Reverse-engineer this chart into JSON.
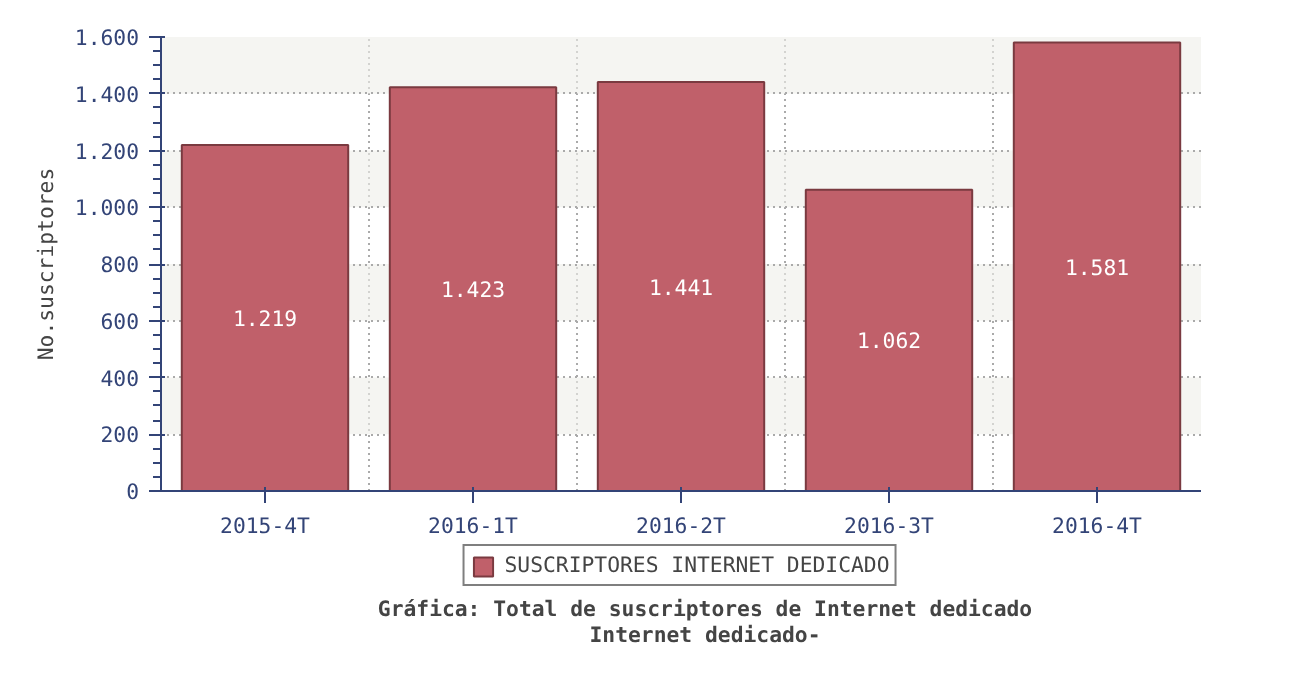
{
  "chart_data": {
    "type": "bar",
    "title": "Gráfica: Total de suscriptores de Internet dedicado\nInternet dedicado-",
    "ylabel": "No.suscriptores",
    "categories": [
      "2015-4T",
      "2016-1T",
      "2016-2T",
      "2016-3T",
      "2016-4T"
    ],
    "series": [
      {
        "name": "SUSCRIPTORES INTERNET DEDICADO",
        "color": "#c0606a",
        "values": [
          1219,
          1423,
          1441,
          1062,
          1581
        ]
      }
    ],
    "ylim": [
      0,
      1600
    ],
    "yticks": [
      0,
      {
        "value": 200,
        "label": "200"
      },
      {
        "value": 400,
        "label": "400"
      },
      {
        "value": 600,
        "label": "600"
      },
      {
        "value": 800,
        "label": "800"
      },
      {
        "value": 1000,
        "label": "1.000"
      },
      {
        "value": 1200,
        "label": "1.200"
      },
      {
        "value": 1400,
        "label": "1.400"
      },
      {
        "value": 1600,
        "label": "1.600"
      }
    ],
    "value_labels": [
      "1.219",
      "1.423",
      "1.441",
      "1.062",
      "1.581"
    ],
    "grid": true,
    "legend": "bottom"
  }
}
